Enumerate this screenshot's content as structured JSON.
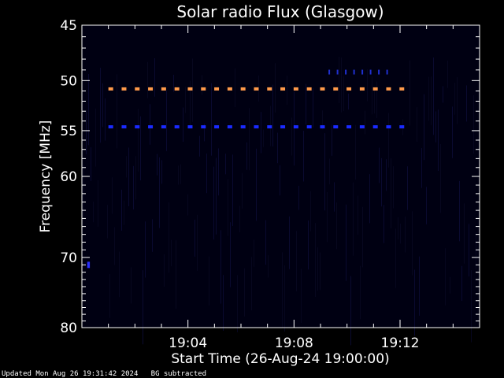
{
  "chart_data": {
    "type": "heatmap",
    "title": "Solar radio Flux (Glasgow)",
    "xlabel": "Start Time (26-Aug-24 19:00:00)",
    "ylabel": "Frequency [MHz]",
    "x_unit": "minutes after 19:00:00",
    "xlim": [
      0,
      15
    ],
    "ylim": [
      45,
      80
    ],
    "y_axis_inverted": true,
    "x_tick_labels": [
      {
        "value": 4,
        "label": "19:04"
      },
      {
        "value": 8,
        "label": "19:08"
      },
      {
        "value": 12,
        "label": "19:12"
      }
    ],
    "y_tick_labels": [
      {
        "value": 45,
        "label": "45"
      },
      {
        "value": 50,
        "label": "50"
      },
      {
        "value": 55,
        "label": "55"
      },
      {
        "value": 60,
        "label": "60"
      },
      {
        "value": 70,
        "label": "70"
      },
      {
        "value": 80,
        "label": "80"
      }
    ],
    "background_color": "#000010",
    "emission_features": [
      {
        "freq_mhz": 50.8,
        "t_start": 1.0,
        "t_end": 12.3,
        "color": "#ff9a4a",
        "style": "dashed"
      },
      {
        "freq_mhz": 54.6,
        "t_start": 1.0,
        "t_end": 12.3,
        "color": "#1a2aff",
        "style": "dashed"
      },
      {
        "freq_mhz": 49.2,
        "t_start": 9.3,
        "t_end": 11.6,
        "color": "#2030d0",
        "style": "sparse"
      },
      {
        "freq_mhz": 71.0,
        "t_start": 0.2,
        "t_end": 0.3,
        "color": "#2a30ff",
        "style": "spot"
      }
    ],
    "grid": false
  },
  "footer": {
    "updated": "Updated Mon Aug 26 19:31:42 2024",
    "note": "BG subtracted"
  }
}
